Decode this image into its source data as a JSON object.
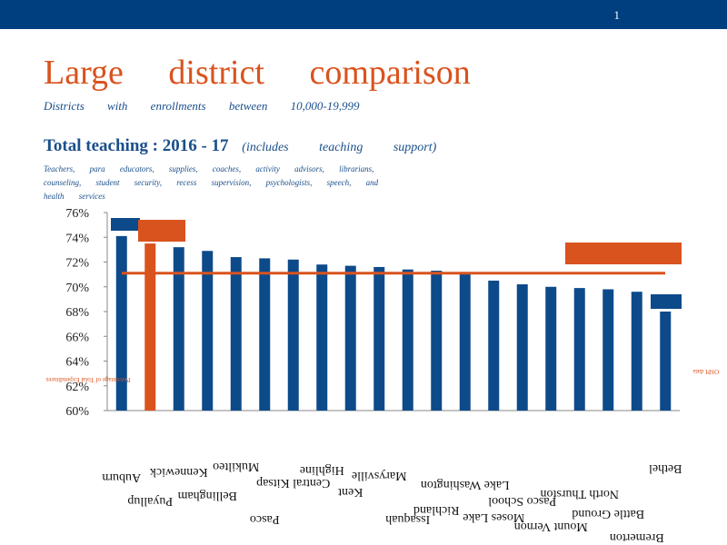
{
  "slide": {
    "number": "1"
  },
  "title": "Large district comparison",
  "subtitle": "Districts with enrollments between 10,000-19,999",
  "heading": {
    "main": "Total teaching : 2016 - 17",
    "note": "(includes teaching support)"
  },
  "description": "Teachers, para educators, supplies, coaches, activity advisors, librarians, counseling, student security, recess supervision, psychologists, speech, and health services",
  "colors": {
    "bar": "#0d4a8a",
    "highlight": "#d9531e",
    "header": "#003f7f",
    "average_line": "#d9531e"
  },
  "chart_data": {
    "type": "bar",
    "y_tick_labels": [
      "60%",
      "62%",
      "64%",
      "66%",
      "68%",
      "70%",
      "72%",
      "74%",
      "76%"
    ],
    "ylim": [
      60,
      76
    ],
    "grid": false,
    "values": [
      74.1,
      73.5,
      73.2,
      72.9,
      72.4,
      72.3,
      72.2,
      71.8,
      71.7,
      71.6,
      71.4,
      71.3,
      71.1,
      70.5,
      70.2,
      70.0,
      69.9,
      69.8,
      69.6,
      68.0
    ],
    "highlight_index": 1,
    "average": 71.1,
    "category_labels": [
      "Auburn",
      "Puyallup",
      "Kennewick",
      "Bellingham",
      "Mukilteo",
      "Pasco",
      "Central Kitsap",
      "Highline",
      "Kent",
      "Marysville",
      "Issaquah",
      "Richland",
      "Lake Washington",
      "Moses Lake",
      "Pasco School",
      "Mount Vernon",
      "North Thurston",
      "Battle Ground",
      "Bremerton",
      "Bethel"
    ],
    "side_label_left": "Percentage of Total Expenditures",
    "side_label_right": "OSPI data"
  }
}
